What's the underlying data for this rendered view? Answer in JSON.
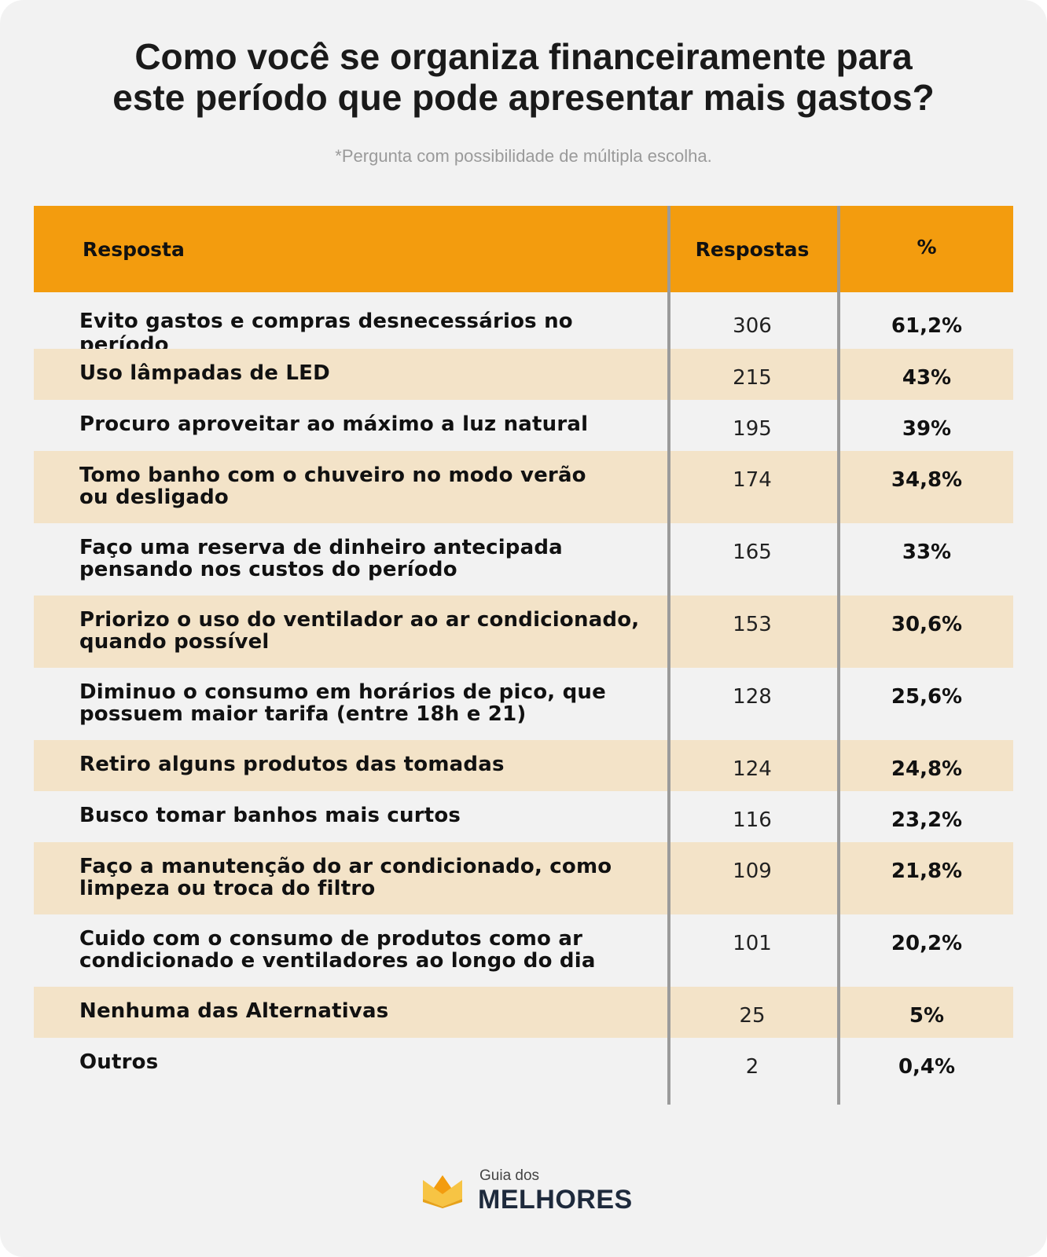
{
  "title_lines": [
    "Como você se organiza financeiramente para",
    "este período que pode apresentar mais gastos?"
  ],
  "subtitle": "*Pergunta com possibilidade de múltipla escolha.",
  "colors": {
    "header_bg": "#f39c0e",
    "shaded_row": "#f3e3c8",
    "card_bg": "#f2f2f2",
    "divider": "#9b9b9b"
  },
  "chart_data": {
    "type": "table",
    "columns": [
      "Resposta",
      "Respostas",
      "%"
    ],
    "rows": [
      {
        "lines": [
          "Evito gastos e compras desnecessários no período"
        ],
        "count": "306",
        "pct": "61,2%"
      },
      {
        "lines": [
          "Uso lâmpadas de LED"
        ],
        "count": "215",
        "pct": "43%"
      },
      {
        "lines": [
          "Procuro aproveitar ao máximo a luz natural"
        ],
        "count": "195",
        "pct": "39%"
      },
      {
        "lines": [
          "Tomo banho com o chuveiro no modo verão",
          "ou desligado"
        ],
        "count": "174",
        "pct": "34,8%"
      },
      {
        "lines": [
          "Faço uma reserva de dinheiro antecipada",
          "pensando nos custos do período"
        ],
        "count": "165",
        "pct": "33%"
      },
      {
        "lines": [
          "Priorizo o uso do ventilador ao ar condicionado,",
          "quando possível"
        ],
        "count": "153",
        "pct": "30,6%"
      },
      {
        "lines": [
          "Diminuo o consumo em horários de pico, que",
          "possuem maior tarifa (entre 18h e 21)"
        ],
        "count": "128",
        "pct": "25,6%"
      },
      {
        "lines": [
          "Retiro alguns produtos das tomadas"
        ],
        "count": "124",
        "pct": "24,8%"
      },
      {
        "lines": [
          "Busco tomar banhos mais curtos"
        ],
        "count": "116",
        "pct": "23,2%"
      },
      {
        "lines": [
          "Faço a manutenção do ar condicionado, como",
          "limpeza ou troca do filtro"
        ],
        "count": "109",
        "pct": "21,8%"
      },
      {
        "lines": [
          "Cuido com o consumo de produtos como ar",
          "condicionado e ventiladores ao longo do dia"
        ],
        "count": "101",
        "pct": "20,2%"
      },
      {
        "lines": [
          "Nenhuma das Alternativas"
        ],
        "count": "25",
        "pct": "5%"
      },
      {
        "lines": [
          "Outros"
        ],
        "count": "2",
        "pct": "0,4%"
      }
    ]
  },
  "logo": {
    "small_text": "Guia dos",
    "big_text": "MELHORES",
    "icon": "crown-icon"
  }
}
